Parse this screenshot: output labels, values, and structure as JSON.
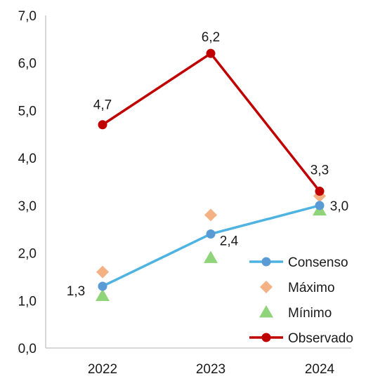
{
  "chart_data": {
    "type": "line",
    "categories": [
      "2022",
      "2023",
      "2024"
    ],
    "ylim": [
      0,
      7
    ],
    "y_ticks": [
      "0,0",
      "1,0",
      "2,0",
      "3,0",
      "4,0",
      "5,0",
      "6,0",
      "7,0"
    ],
    "grid": false,
    "legend_placement": "bottom-right",
    "series": [
      {
        "name": "Consenso",
        "kind": "line-marker",
        "marker": "circle",
        "color": "#5b9bd5",
        "line_color": "#4eb3e0",
        "values": [
          1.3,
          2.4,
          3.0
        ],
        "labels": [
          "1,3",
          "2,4",
          "3,0"
        ]
      },
      {
        "name": "Máximo",
        "kind": "marker",
        "marker": "diamond",
        "color": "#f4b183",
        "values": [
          1.6,
          2.8,
          3.2
        ],
        "labels": [
          "",
          "",
          ""
        ]
      },
      {
        "name": "Mínimo",
        "kind": "marker",
        "marker": "triangle",
        "color": "#8fd47a",
        "values": [
          1.1,
          1.9,
          2.9
        ],
        "labels": [
          "",
          "",
          ""
        ]
      },
      {
        "name": "Observado",
        "kind": "line-marker",
        "marker": "circle",
        "color": "#c00000",
        "line_color": "#c00000",
        "values": [
          4.7,
          6.2,
          3.3
        ],
        "labels": [
          "4,7",
          "6,2",
          "3,3"
        ]
      }
    ]
  }
}
